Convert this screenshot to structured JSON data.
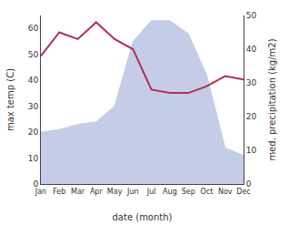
{
  "chart_data": {
    "type": "area",
    "categories": [
      "Jan",
      "Feb",
      "Mar",
      "Apr",
      "May",
      "Jun",
      "Jul",
      "Aug",
      "Sep",
      "Oct",
      "Nov",
      "Dec"
    ],
    "series": [
      {
        "type": "area",
        "color": "#c5cce8",
        "values": [
          20,
          21,
          23,
          24,
          30,
          55,
          63,
          63,
          58,
          42,
          14,
          11
        ]
      },
      {
        "type": "line",
        "axis": "y2",
        "color": "#b03050",
        "values": [
          38,
          45,
          43,
          48,
          43,
          40,
          28,
          27,
          27,
          29,
          32,
          31
        ]
      }
    ],
    "xlabel": "date (month)",
    "ylabel": "max temp (C)",
    "y2label": "med. precipitation (kg/m2)",
    "ylim": [
      0,
      65
    ],
    "yticks": [
      0,
      10,
      20,
      30,
      40,
      50,
      60
    ],
    "y2lim": [
      0,
      50
    ],
    "y2ticks": [
      0,
      10,
      20,
      30,
      40,
      50
    ],
    "grid": false
  }
}
